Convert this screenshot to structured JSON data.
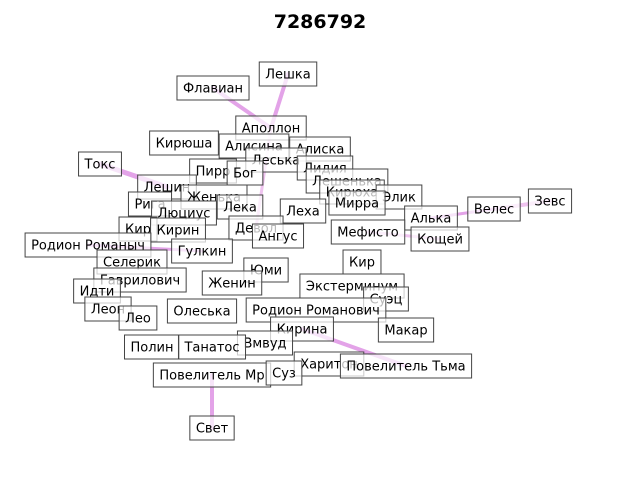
{
  "title": "7286792",
  "colors": {
    "edge": "#e3a3e8",
    "edge_core": "#efc3ef",
    "box_border": "#444444",
    "text": "#000000"
  },
  "nodes": [
    "Флавиан",
    "Лешка",
    "Аполлон",
    "Кирюша",
    "Алисина",
    "Алиска",
    "Леська",
    "Токс",
    "Лидия",
    "Пирр",
    "Бог",
    "Лешенька",
    "Лешин",
    "Кирюха",
    "Элик",
    "Рига",
    "Женька",
    "Лека",
    "Леха",
    "Мирра",
    "Зевс",
    "Велес",
    "Алька",
    "Люциус",
    "Кир",
    "Кирин",
    "Девол",
    "Ангус",
    "Мефисто",
    "Кощей",
    "Родион Романыч",
    "Гулкин",
    "Селерик",
    "Юми",
    "Кир",
    "Гаврилович",
    "Экстерминум",
    "Идти",
    "Женин",
    "Суэц",
    "Леон",
    "Олеська",
    "Родион Романович",
    "Лео",
    "Кирина",
    "Макар",
    "Полин",
    "Вмвуд",
    "Танатос",
    "Харитон",
    "Повелитель Тьма",
    "Повелитель Мр",
    "Суз",
    "Свет"
  ]
}
